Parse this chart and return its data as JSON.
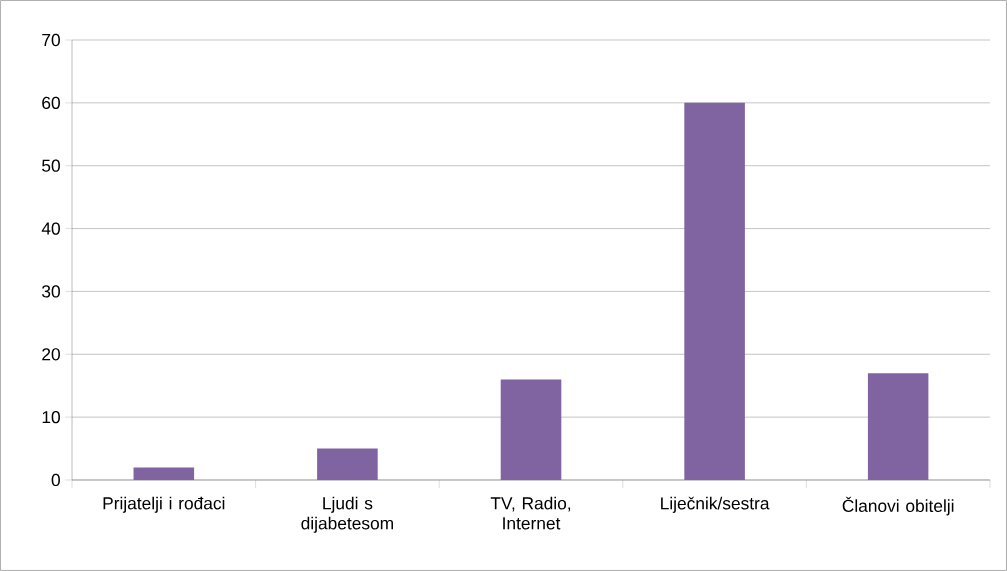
{
  "chart_data": {
    "type": "bar",
    "categories": [
      "Prijatelji i rođaci",
      "Ljudi s dijabetesom",
      "TV, Radio, Internet",
      "Liječnik/sestra",
      "Članovi obitelji"
    ],
    "values": [
      2,
      5,
      16,
      60,
      17
    ],
    "color": "#8064a2",
    "ylim": [
      0,
      70
    ],
    "yticks": [
      0,
      10,
      20,
      30,
      40,
      50,
      60,
      70
    ],
    "grid": "y"
  }
}
